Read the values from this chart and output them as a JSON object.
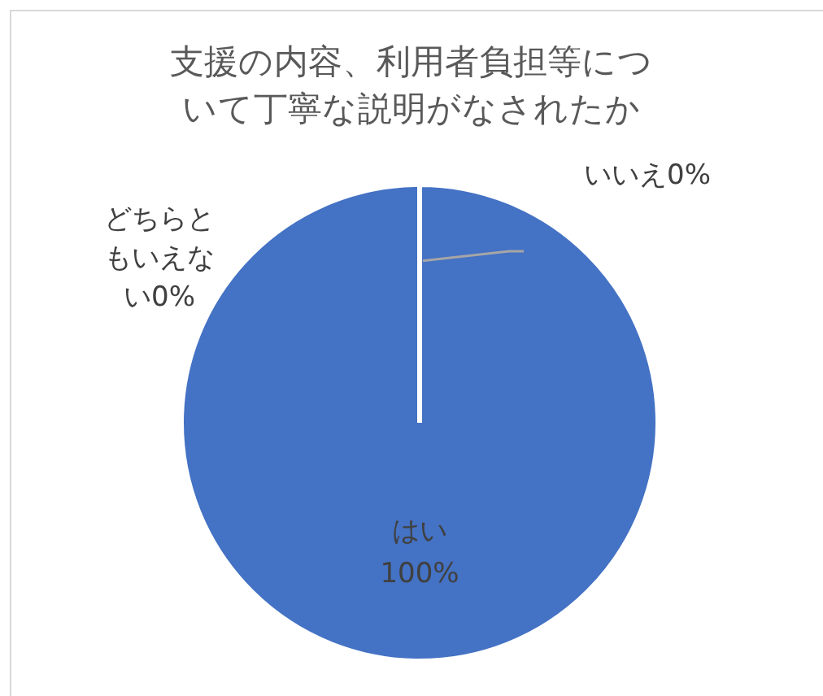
{
  "chart_data": {
    "type": "pie",
    "title": "支援の内容、利用者負担等について丁寧な説明がなされたか",
    "categories": [
      "はい",
      "いいえ",
      "どちらともいえない"
    ],
    "values": [
      100,
      0,
      0
    ],
    "colors": [
      "#4472c4",
      "#ed7d31",
      "#a5a5a5"
    ],
    "value_labels": [
      "100%",
      "0%",
      "0%"
    ],
    "legend": false
  }
}
